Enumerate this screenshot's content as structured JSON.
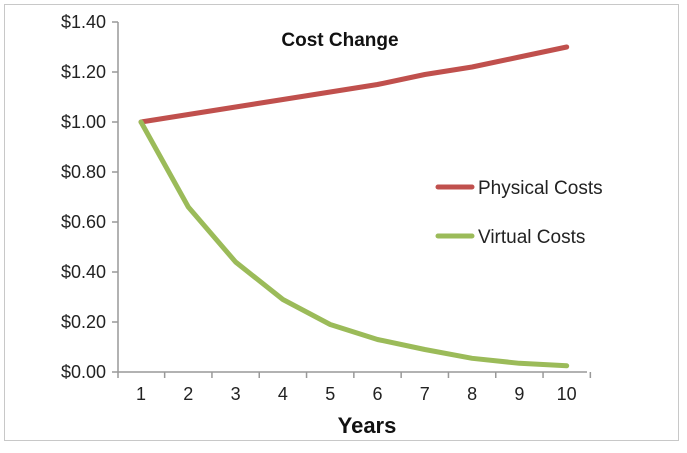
{
  "chart_data": {
    "type": "line",
    "title": "Cost Change",
    "xlabel": "Years",
    "ylabel": "",
    "x": [
      1,
      2,
      3,
      4,
      5,
      6,
      7,
      8,
      9,
      10
    ],
    "x_tick_labels": [
      "1",
      "2",
      "3",
      "4",
      "5",
      "6",
      "7",
      "8",
      "9",
      "10"
    ],
    "y_tick_labels": [
      "$0.00",
      "$0.20",
      "$0.40",
      "$0.60",
      "$0.80",
      "$1.00",
      "$1.20",
      "$1.40"
    ],
    "y_ticks": [
      0,
      0.2,
      0.4,
      0.6,
      0.8,
      1.0,
      1.2,
      1.4
    ],
    "ylim": [
      0,
      1.4
    ],
    "grid": false,
    "legend_position": "right",
    "series": [
      {
        "name": "Physical Costs",
        "color": "#c0504d",
        "values": [
          1.0,
          1.03,
          1.06,
          1.09,
          1.12,
          1.15,
          1.19,
          1.22,
          1.26,
          1.3
        ]
      },
      {
        "name": "Virtual Costs",
        "color": "#9bbb59",
        "values": [
          1.0,
          0.66,
          0.44,
          0.29,
          0.19,
          0.13,
          0.09,
          0.055,
          0.035,
          0.025
        ]
      }
    ]
  }
}
